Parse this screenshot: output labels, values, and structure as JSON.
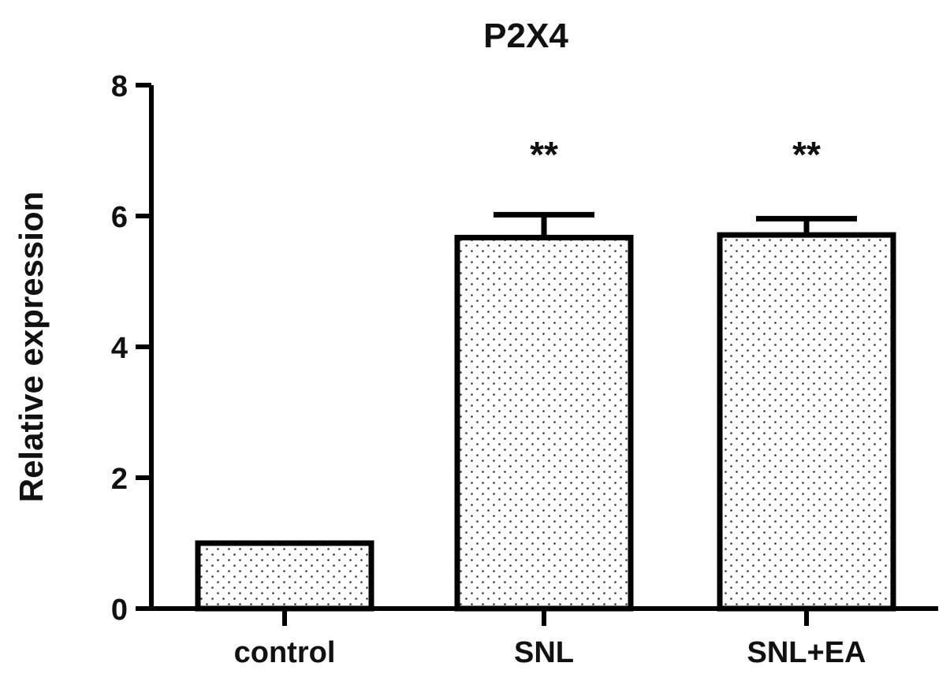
{
  "chart_data": {
    "type": "bar",
    "title": "P2X4",
    "xlabel": "",
    "ylabel": "Relative expression",
    "ylim": [
      0,
      8
    ],
    "yticks": [
      0,
      2,
      4,
      6,
      8
    ],
    "categories": [
      "control",
      "SNL",
      "SNL+EA"
    ],
    "values": [
      1.0,
      5.67,
      5.71
    ],
    "errors": [
      0.0,
      0.35,
      0.25
    ],
    "annotations": [
      "",
      "**",
      "**"
    ],
    "grid": false,
    "legend": "none",
    "colors": {
      "bar_fill": "#ffffff",
      "bar_pattern": "dotted",
      "stroke": "#000000"
    }
  }
}
